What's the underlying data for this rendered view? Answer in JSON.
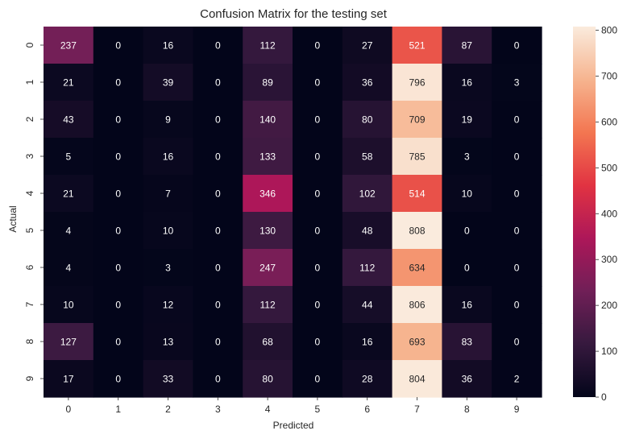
{
  "chart_data": {
    "type": "heatmap",
    "title": "Confusion Matrix for the testing set",
    "xlabel": "Predicted",
    "ylabel": "Actual",
    "x_categories": [
      "0",
      "1",
      "2",
      "3",
      "4",
      "5",
      "6",
      "7",
      "8",
      "9"
    ],
    "y_categories": [
      "0",
      "1",
      "2",
      "3",
      "4",
      "5",
      "6",
      "7",
      "8",
      "9"
    ],
    "values": [
      [
        237,
        0,
        16,
        0,
        112,
        0,
        27,
        521,
        87,
        0
      ],
      [
        21,
        0,
        39,
        0,
        89,
        0,
        36,
        796,
        16,
        3
      ],
      [
        43,
        0,
        9,
        0,
        140,
        0,
        80,
        709,
        19,
        0
      ],
      [
        5,
        0,
        16,
        0,
        133,
        0,
        58,
        785,
        3,
        0
      ],
      [
        21,
        0,
        7,
        0,
        346,
        0,
        102,
        514,
        10,
        0
      ],
      [
        4,
        0,
        10,
        0,
        130,
        0,
        48,
        808,
        0,
        0
      ],
      [
        4,
        0,
        3,
        0,
        247,
        0,
        112,
        634,
        0,
        0
      ],
      [
        10,
        0,
        12,
        0,
        112,
        0,
        44,
        806,
        16,
        0
      ],
      [
        127,
        0,
        13,
        0,
        68,
        0,
        16,
        693,
        83,
        0
      ],
      [
        17,
        0,
        33,
        0,
        80,
        0,
        28,
        804,
        36,
        2
      ]
    ],
    "colorbar": {
      "min": 0,
      "max": 808,
      "ticks": [
        0,
        100,
        200,
        300,
        400,
        500,
        600,
        700,
        800
      ]
    },
    "colormap": [
      "#03051a",
      "#36193e",
      "#701f57",
      "#ad1759",
      "#e13342",
      "#f37651",
      "#f6b48f",
      "#faebdd"
    ],
    "grid": false
  }
}
